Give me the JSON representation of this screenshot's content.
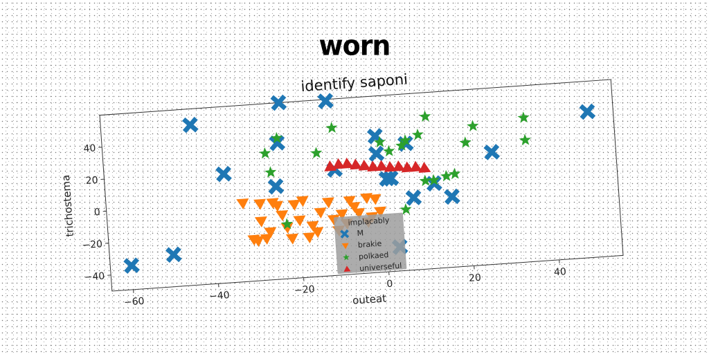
{
  "figure_title": "worn",
  "chart_data": {
    "type": "scatter",
    "title": "identify saponi",
    "xlabel": "outeat",
    "ylabel": "trichostema",
    "xlim": [
      -65,
      55
    ],
    "ylim": [
      -50,
      60
    ],
    "xticks": [
      -60,
      -40,
      -20,
      0,
      20,
      40
    ],
    "yticks": [
      -40,
      -20,
      0,
      20,
      40
    ],
    "grid": false,
    "legend": {
      "title": "implacably",
      "placement": "lower-center"
    },
    "series": [
      {
        "name": "M",
        "color": "#1f77b4",
        "marker": "x",
        "points": [
          [
            -60,
            -35
          ],
          [
            -50,
            -30
          ],
          [
            -44,
            50
          ],
          [
            -37,
            18
          ],
          [
            -25,
            8
          ],
          [
            -24,
            35
          ],
          [
            -23,
            60
          ],
          [
            -12,
            59
          ],
          [
            -11,
            16
          ],
          [
            -1,
            35
          ],
          [
            -1,
            24
          ],
          [
            1,
            8
          ],
          [
            2,
            8
          ],
          [
            3,
            -35
          ],
          [
            6,
            29
          ],
          [
            7,
            -5
          ],
          [
            12,
            3
          ],
          [
            16,
            -6
          ],
          [
            26,
            20
          ],
          [
            49,
            41
          ]
        ]
      },
      {
        "name": "brakie",
        "color": "#ff7f0e",
        "marker": "v",
        "points": [
          [
            -33,
            -1
          ],
          [
            -31,
            -24
          ],
          [
            -30,
            -25
          ],
          [
            -29,
            -13
          ],
          [
            -29,
            -2
          ],
          [
            -28,
            -24
          ],
          [
            -27,
            -20
          ],
          [
            -26,
            -2
          ],
          [
            -25,
            -4
          ],
          [
            -24,
            -10
          ],
          [
            -23,
            -18
          ],
          [
            -22,
            -25
          ],
          [
            -21,
            -4
          ],
          [
            -20,
            -14
          ],
          [
            -19,
            -2
          ],
          [
            -18,
            -25
          ],
          [
            -17,
            -18
          ],
          [
            -16,
            -22
          ],
          [
            -15,
            -10
          ],
          [
            -13,
            -4
          ],
          [
            -12,
            -15
          ],
          [
            -11,
            -22
          ],
          [
            -10,
            -12
          ],
          [
            -9,
            -18
          ],
          [
            -8,
            -4
          ],
          [
            -7,
            -8
          ],
          [
            -6,
            -12
          ],
          [
            -4,
            -18
          ],
          [
            -4,
            -3
          ],
          [
            -3,
            -15
          ],
          [
            -2,
            -4
          ],
          [
            -1,
            -12
          ]
        ]
      },
      {
        "name": "polkaed",
        "color": "#2ca02c",
        "marker": "*",
        "points": [
          [
            -27,
            29
          ],
          [
            -26,
            17
          ],
          [
            -24,
            38
          ],
          [
            -23,
            -16
          ],
          [
            -15,
            27
          ],
          [
            -11,
            42
          ],
          [
            0,
            31
          ],
          [
            2,
            25
          ],
          [
            5,
            28
          ],
          [
            5,
            -12
          ],
          [
            6,
            31
          ],
          [
            9,
            34
          ],
          [
            10,
            5
          ],
          [
            11,
            45
          ],
          [
            12,
            5
          ],
          [
            15,
            7
          ],
          [
            17,
            8
          ],
          [
            20,
            27
          ],
          [
            22,
            37
          ],
          [
            34,
            26
          ],
          [
            34,
            40
          ]
        ]
      },
      {
        "name": "universeful",
        "color": "#d62728",
        "marker": "^",
        "points": [
          [
            -12,
            18
          ],
          [
            -10,
            19
          ],
          [
            -8,
            19
          ],
          [
            -6,
            18
          ],
          [
            -4,
            17
          ],
          [
            -2,
            16
          ],
          [
            0,
            16
          ],
          [
            2,
            15
          ],
          [
            4,
            15
          ],
          [
            6,
            14
          ],
          [
            8,
            14
          ],
          [
            10,
            13
          ]
        ]
      }
    ]
  }
}
